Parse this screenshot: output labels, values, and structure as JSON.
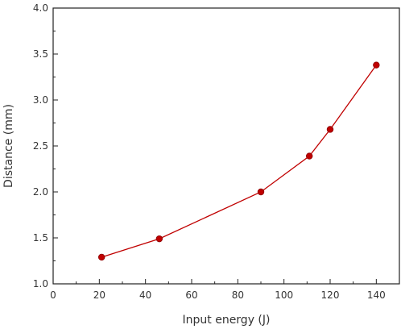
{
  "chart_data": {
    "type": "line",
    "xlabel": "Input energy (J)",
    "ylabel": "Distance (mm)",
    "xlim": [
      0,
      150
    ],
    "ylim": [
      1.0,
      4.0
    ],
    "x_ticks": [
      0,
      20,
      40,
      60,
      80,
      100,
      120,
      140
    ],
    "y_ticks": [
      1.0,
      1.5,
      2.0,
      2.5,
      3.0,
      3.5,
      4.0
    ],
    "x_tick_labels": [
      "0",
      "20",
      "40",
      "60",
      "80",
      "100",
      "120",
      "140"
    ],
    "y_tick_labels": [
      "1.0",
      "1.5",
      "2.0",
      "2.5",
      "3.0",
      "3.5",
      "4.0"
    ],
    "grid": false,
    "series": [
      {
        "color": "#c00000",
        "marker": "circle",
        "x": [
          21,
          46,
          90,
          111,
          120,
          140
        ],
        "y": [
          1.29,
          1.49,
          2.0,
          2.39,
          2.68,
          3.38
        ]
      }
    ]
  }
}
